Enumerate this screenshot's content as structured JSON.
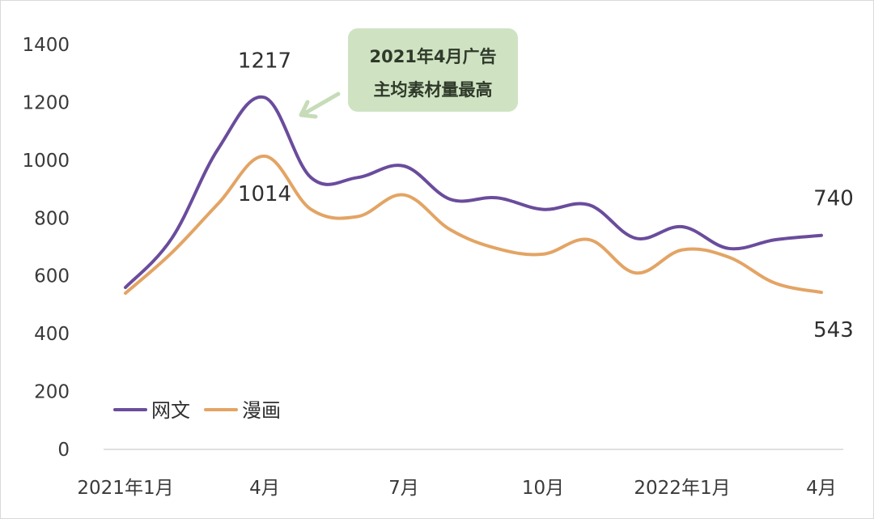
{
  "chart_data": {
    "type": "line",
    "x": [
      "2021-01",
      "2021-02",
      "2021-03",
      "2021-04",
      "2021-05",
      "2021-06",
      "2021-07",
      "2021-08",
      "2021-09",
      "2021-10",
      "2021-11",
      "2021-12",
      "2022-01",
      "2022-02",
      "2022-03",
      "2022-04"
    ],
    "x_tick_labels": [
      {
        "at": 0,
        "label": "2021年1月"
      },
      {
        "at": 3,
        "label": "4月"
      },
      {
        "at": 6,
        "label": "7月"
      },
      {
        "at": 9,
        "label": "10月"
      },
      {
        "at": 12,
        "label": "2022年1月"
      },
      {
        "at": 15,
        "label": "4月"
      }
    ],
    "y_ticks": [
      "0",
      "200",
      "400",
      "600",
      "800",
      "1000",
      "1200",
      "1400"
    ],
    "ylim": [
      0,
      1400
    ],
    "series": [
      {
        "name": "网文",
        "color": "#6a4c9c",
        "values": [
          560,
          730,
          1040,
          1217,
          940,
          940,
          980,
          865,
          870,
          830,
          845,
          730,
          770,
          695,
          725,
          740
        ]
      },
      {
        "name": "漫画",
        "color": "#e3a464",
        "values": [
          540,
          680,
          850,
          1014,
          830,
          805,
          880,
          760,
          695,
          675,
          725,
          610,
          690,
          665,
          575,
          543
        ]
      }
    ],
    "data_labels": [
      {
        "series": 0,
        "index": 3,
        "text": "1217",
        "pos": "above"
      },
      {
        "series": 1,
        "index": 3,
        "text": "1014",
        "pos": "below"
      },
      {
        "series": 0,
        "index": 15,
        "text": "740",
        "pos": "above"
      },
      {
        "series": 1,
        "index": 15,
        "text": "543",
        "pos": "below"
      }
    ],
    "annotation": {
      "lines": [
        "2021年4月广告",
        "主均素材量最高"
      ],
      "bg": "#cfe3c3",
      "arrow_color": "#c6dcb9"
    },
    "legend_position": "bottom-left",
    "grid": false,
    "title": "",
    "xlabel": "",
    "ylabel": ""
  }
}
